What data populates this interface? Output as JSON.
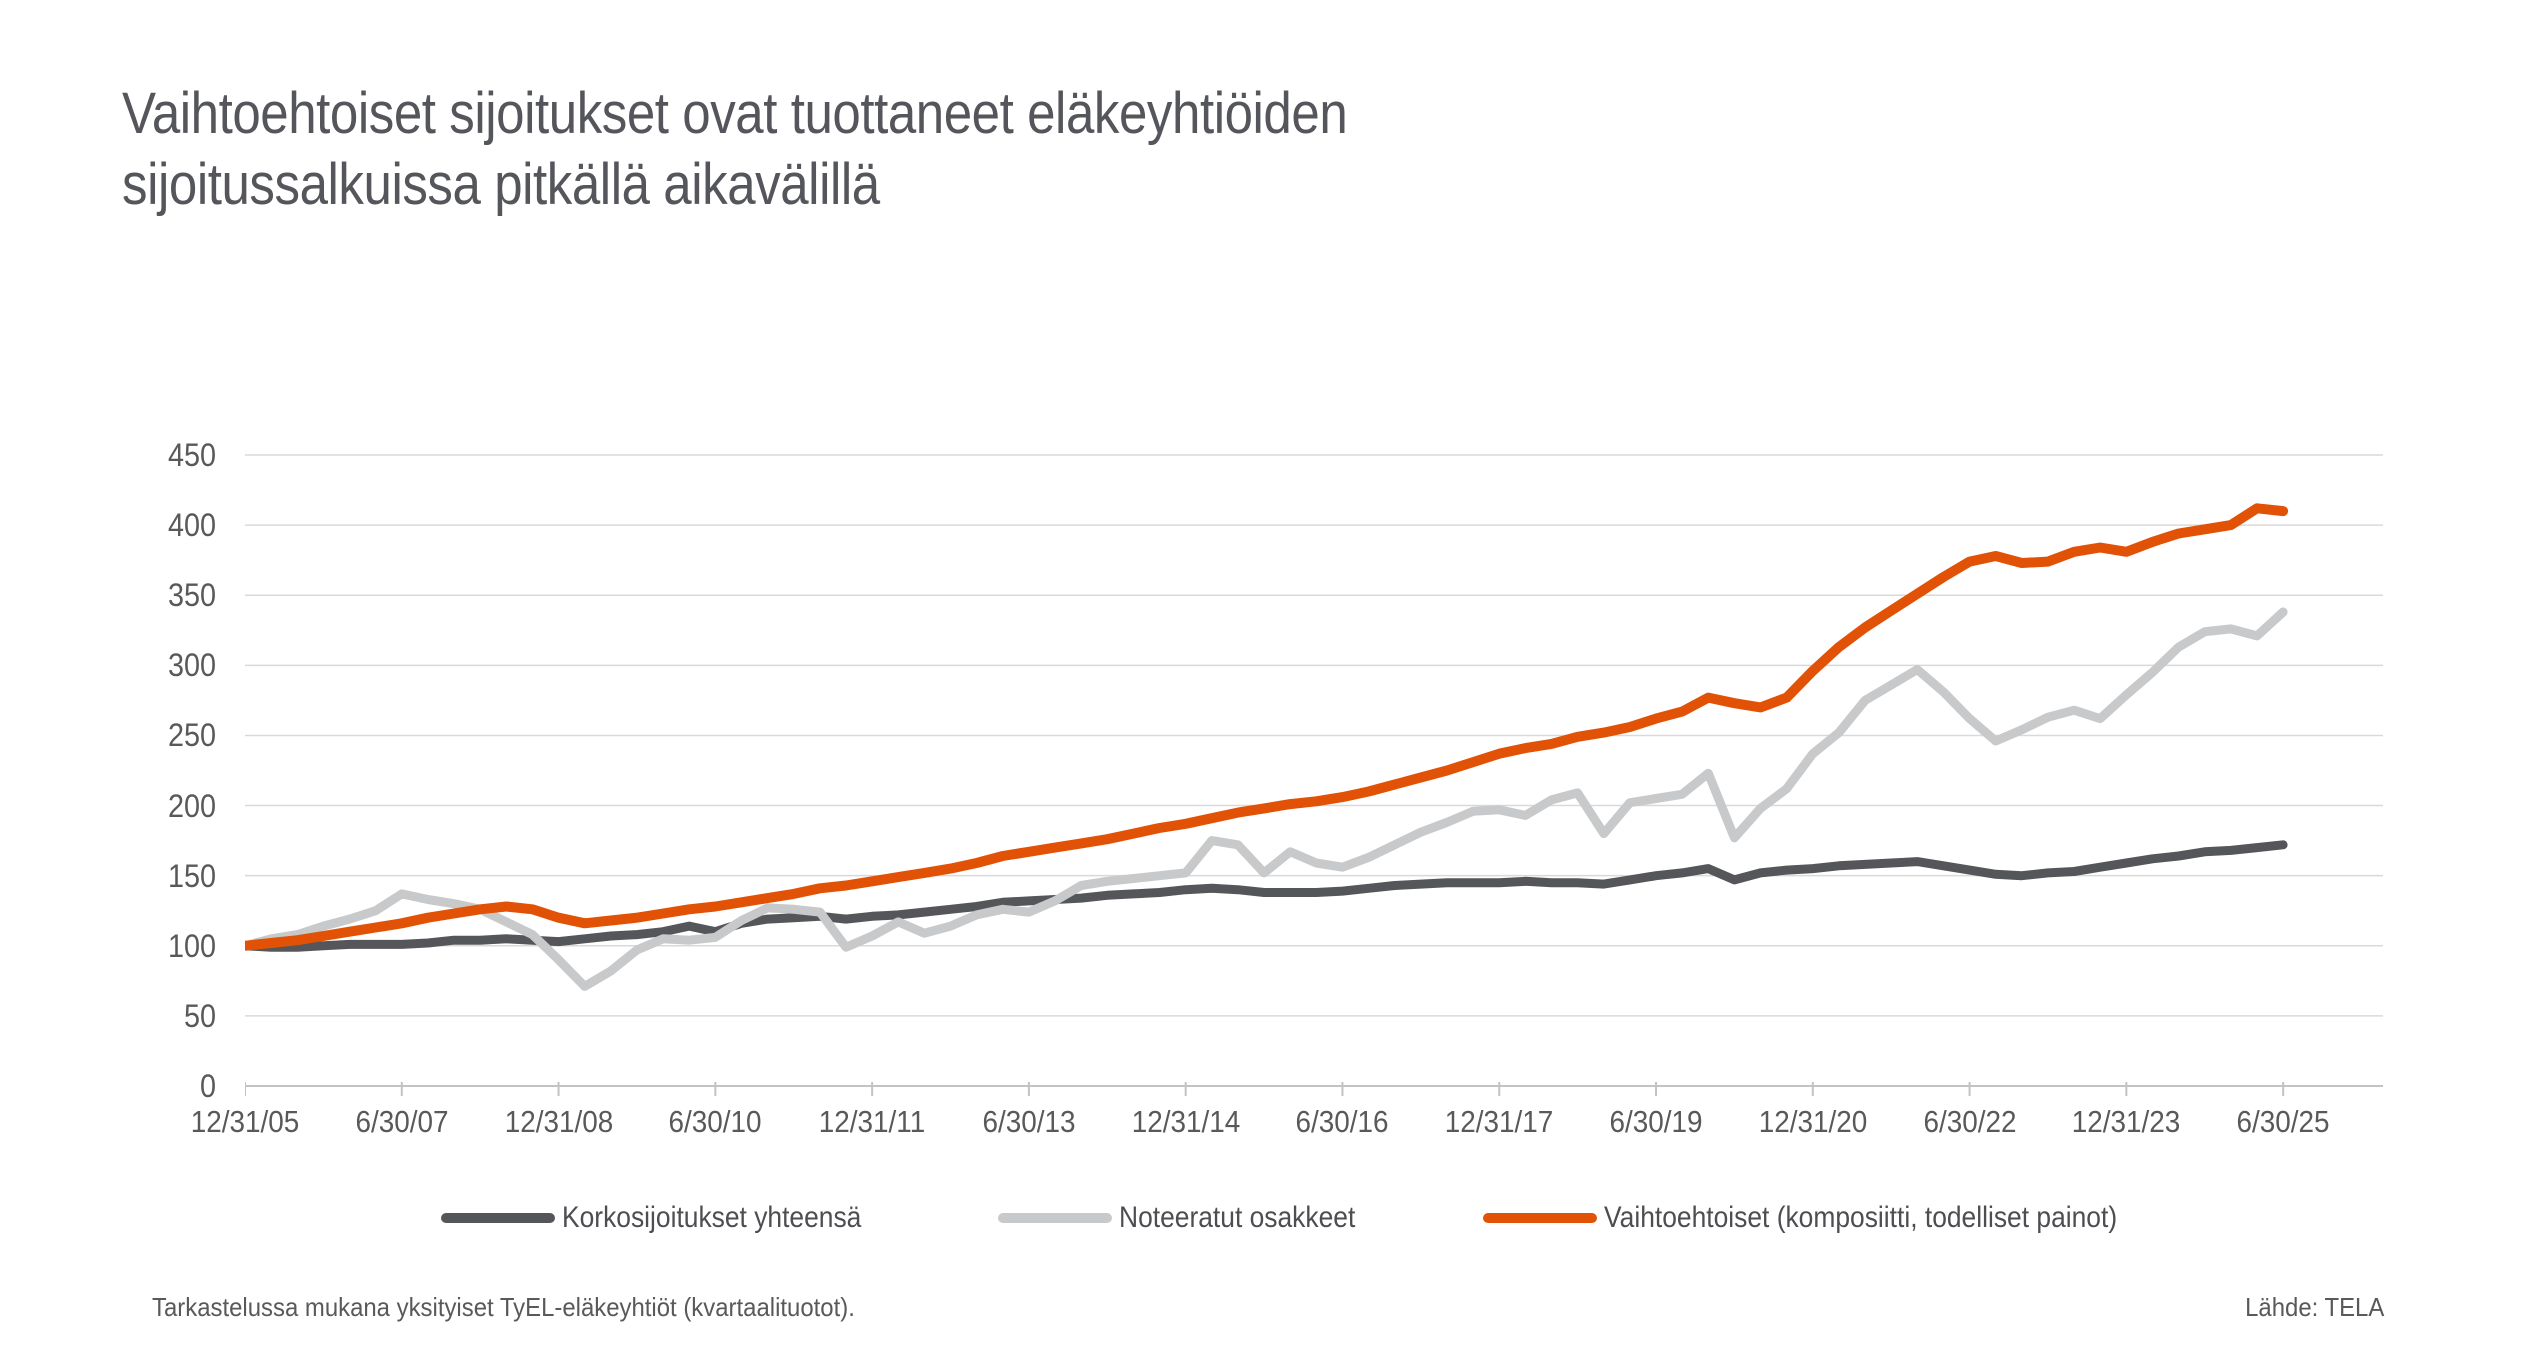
{
  "title": {
    "line1": "Vaihtoehtoiset sijoitukset ovat tuottaneet eläkeyhtiöiden",
    "line2": "sijoitussalkuissa pitkällä aikavälillä"
  },
  "footer": {
    "note": "Tarkastelussa mukana yksityiset TyEL-eläkeyhtiöt (kvartaalituotot).",
    "source": "Lähde: TELA"
  },
  "colors": {
    "title_text": "#54565B",
    "axis_text": "#595959",
    "gridline": "#D9D9D9",
    "axis_line": "#C3C3C3"
  },
  "chart_data": {
    "type": "line",
    "title": "Vaihtoehtoiset sijoitukset ovat tuottaneet eläkeyhtiöiden sijoitussalkuissa pitkällä aikavälillä",
    "index_base": 100,
    "x_frequency": "quarterly",
    "x_start": "12/31/05",
    "x_end": "6/30/25",
    "x_tick_labels": [
      "12/31/05",
      "6/30/07",
      "12/31/08",
      "6/30/10",
      "12/31/11",
      "6/30/13",
      "12/31/14",
      "6/30/16",
      "12/31/17",
      "6/30/19",
      "12/31/20",
      "6/30/22",
      "12/31/23",
      "6/30/25"
    ],
    "ylim": [
      0,
      450
    ],
    "y_ticks": [
      0,
      50,
      100,
      150,
      200,
      250,
      300,
      350,
      400,
      450
    ],
    "grid": "horizontal",
    "legend_position": "bottom",
    "series": [
      {
        "name": "Korkosijoitukset yhteensä",
        "color": "#55565A",
        "values": [
          100,
          99,
          99,
          100,
          101,
          101,
          101,
          102,
          104,
          104,
          105,
          104,
          103,
          105,
          107,
          108,
          110,
          114,
          110,
          116,
          119,
          120,
          121,
          119,
          121,
          122,
          124,
          126,
          128,
          131,
          132,
          133,
          134,
          136,
          137,
          138,
          140,
          141,
          140,
          138,
          138,
          138,
          139,
          141,
          143,
          144,
          145,
          145,
          145,
          146,
          145,
          145,
          144,
          147,
          150,
          152,
          155,
          147,
          152,
          154,
          155,
          157,
          158,
          159,
          160,
          157,
          154,
          151,
          150,
          152,
          153,
          156,
          159,
          162,
          164,
          167,
          168,
          170,
          172
        ]
      },
      {
        "name": "Noteeratut osakkeet",
        "color": "#C8C9CA",
        "values": [
          100,
          105,
          108,
          114,
          119,
          125,
          137,
          133,
          130,
          126,
          117,
          108,
          90,
          71,
          82,
          97,
          105,
          104,
          106,
          118,
          127,
          126,
          124,
          99,
          107,
          117,
          109,
          114,
          122,
          126,
          124,
          132,
          143,
          146,
          148,
          150,
          152,
          175,
          172,
          152,
          167,
          159,
          156,
          163,
          172,
          181,
          188,
          196,
          197,
          193,
          204,
          209,
          180,
          202,
          205,
          208,
          223,
          177,
          198,
          212,
          237,
          252,
          275,
          286,
          297,
          281,
          262,
          246,
          254,
          263,
          268,
          262,
          279,
          295,
          313,
          324,
          326,
          321,
          338
        ]
      },
      {
        "name": "Vaihtoehtoiset (komposiitti, todelliset painot)",
        "color": "#E15206",
        "values": [
          100,
          102,
          104,
          107,
          110,
          113,
          116,
          120,
          123,
          126,
          128,
          126,
          120,
          116,
          118,
          120,
          123,
          126,
          128,
          131,
          134,
          137,
          141,
          143,
          146,
          149,
          152,
          155,
          159,
          164,
          167,
          170,
          173,
          176,
          180,
          184,
          187,
          191,
          195,
          198,
          201,
          203,
          206,
          210,
          215,
          220,
          225,
          231,
          237,
          241,
          244,
          249,
          252,
          256,
          262,
          267,
          277,
          273,
          270,
          277,
          296,
          313,
          327,
          339,
          351,
          363,
          374,
          378,
          373,
          374,
          381,
          384,
          381,
          388,
          394,
          397,
          400,
          412,
          410
        ]
      }
    ]
  }
}
